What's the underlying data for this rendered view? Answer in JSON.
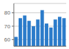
{
  "chart_data": {
    "type": "bar",
    "categories": [
      null,
      null,
      null,
      null,
      null,
      null,
      null,
      null,
      null,
      null,
      null,
      null
    ],
    "values": [
      62,
      76,
      78,
      74,
      70,
      75,
      82,
      72,
      69,
      75,
      77,
      76
    ],
    "color": "#2b7bca",
    "ylim": [
      55,
      87
    ],
    "yticks": [
      60,
      70,
      80
    ],
    "grid": true,
    "tick_labels": "y"
  }
}
